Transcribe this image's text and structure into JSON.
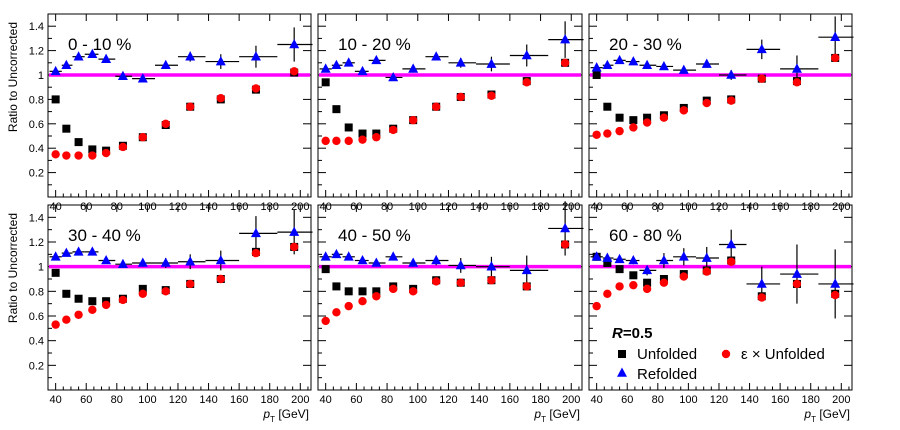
{
  "chart_data": {
    "type": "scatter",
    "y_axis_label": "Ratio to Uncorrected",
    "x_axis_label": {
      "main": "p",
      "subscript": "T",
      "unit": " [GeV]"
    },
    "xlim": [
      35,
      207
    ],
    "ylim": [
      0,
      1.5
    ],
    "x_ticks": [
      40,
      60,
      80,
      100,
      120,
      140,
      160,
      180,
      200
    ],
    "y_ticks": [
      0.2,
      0.4,
      0.6,
      0.8,
      1,
      1.2,
      1.4
    ],
    "reference_line": 1,
    "legend": {
      "title_R": "R",
      "title_rest": "=0.5",
      "unfolded": "Unfolded",
      "refolded": "Refolded",
      "eps_unfolded": "ε × Unfolded"
    },
    "colors": {
      "unfolded": "#000000",
      "refolded": "#0000ff",
      "eps_unfolded": "#ff0000",
      "reference": "#ff00ff"
    },
    "panels": [
      {
        "label": "0 - 10 %",
        "unfolded": [
          [
            40,
            0.8
          ],
          [
            47,
            0.56
          ],
          [
            55,
            0.45
          ],
          [
            64,
            0.39
          ],
          [
            73,
            0.38
          ],
          [
            84,
            0.42
          ],
          [
            97,
            0.49
          ],
          [
            112,
            0.59
          ],
          [
            128,
            0.74
          ],
          [
            148,
            0.8
          ],
          [
            171,
            0.88
          ],
          [
            196,
            1.02
          ]
        ],
        "eps_unfolded": [
          [
            40,
            0.35
          ],
          [
            47,
            0.34
          ],
          [
            55,
            0.34
          ],
          [
            64,
            0.34
          ],
          [
            73,
            0.36
          ],
          [
            84,
            0.41
          ],
          [
            97,
            0.49
          ],
          [
            112,
            0.6
          ],
          [
            128,
            0.74
          ],
          [
            148,
            0.81
          ],
          [
            171,
            0.89
          ],
          [
            196,
            1.03
          ]
        ],
        "refolded": [
          [
            40,
            1.03
          ],
          [
            47,
            1.08
          ],
          [
            55,
            1.15
          ],
          [
            64,
            1.17
          ],
          [
            73,
            1.13
          ],
          [
            84,
            0.99
          ],
          [
            97,
            0.97
          ],
          [
            112,
            1.08
          ],
          [
            128,
            1.15
          ],
          [
            148,
            1.11
          ],
          [
            171,
            1.15
          ],
          [
            196,
            1.25
          ]
        ],
        "refolded_err": [
          0.01,
          0.01,
          0.01,
          0.02,
          0.02,
          0.02,
          0.03,
          0.03,
          0.04,
          0.06,
          0.09,
          0.14
        ]
      },
      {
        "label": "10 - 20 %",
        "unfolded": [
          [
            40,
            0.94
          ],
          [
            47,
            0.72
          ],
          [
            55,
            0.57
          ],
          [
            64,
            0.52
          ],
          [
            73,
            0.52
          ],
          [
            84,
            0.56
          ],
          [
            97,
            0.63
          ],
          [
            112,
            0.74
          ],
          [
            128,
            0.82
          ],
          [
            148,
            0.84
          ],
          [
            171,
            0.95
          ],
          [
            196,
            1.1
          ]
        ],
        "eps_unfolded": [
          [
            40,
            0.46
          ],
          [
            47,
            0.46
          ],
          [
            55,
            0.46
          ],
          [
            64,
            0.47
          ],
          [
            73,
            0.49
          ],
          [
            84,
            0.55
          ],
          [
            97,
            0.63
          ],
          [
            112,
            0.74
          ],
          [
            128,
            0.82
          ],
          [
            148,
            0.83
          ],
          [
            171,
            0.94
          ],
          [
            196,
            1.1
          ]
        ],
        "refolded": [
          [
            40,
            1.05
          ],
          [
            47,
            1.08
          ],
          [
            55,
            1.1
          ],
          [
            64,
            1.03
          ],
          [
            73,
            1.12
          ],
          [
            84,
            0.98
          ],
          [
            97,
            1.05
          ],
          [
            112,
            1.15
          ],
          [
            128,
            1.1
          ],
          [
            148,
            1.09
          ],
          [
            171,
            1.16
          ],
          [
            196,
            1.29
          ]
        ],
        "refolded_err": [
          0.01,
          0.01,
          0.01,
          0.02,
          0.02,
          0.02,
          0.03,
          0.03,
          0.04,
          0.06,
          0.09,
          0.15
        ]
      },
      {
        "label": "20 - 30 %",
        "unfolded": [
          [
            40,
            1.0
          ],
          [
            47,
            0.74
          ],
          [
            55,
            0.65
          ],
          [
            64,
            0.63
          ],
          [
            73,
            0.65
          ],
          [
            84,
            0.67
          ],
          [
            97,
            0.73
          ],
          [
            112,
            0.79
          ],
          [
            128,
            0.8
          ],
          [
            148,
            0.97
          ],
          [
            171,
            0.95
          ],
          [
            196,
            1.14
          ]
        ],
        "eps_unfolded": [
          [
            40,
            0.51
          ],
          [
            47,
            0.52
          ],
          [
            55,
            0.54
          ],
          [
            64,
            0.57
          ],
          [
            73,
            0.61
          ],
          [
            84,
            0.65
          ],
          [
            97,
            0.71
          ],
          [
            112,
            0.77
          ],
          [
            128,
            0.79
          ],
          [
            148,
            0.97
          ],
          [
            171,
            0.94
          ],
          [
            196,
            1.14
          ]
        ],
        "refolded": [
          [
            40,
            1.06
          ],
          [
            47,
            1.08
          ],
          [
            55,
            1.12
          ],
          [
            64,
            1.11
          ],
          [
            73,
            1.08
          ],
          [
            84,
            1.07
          ],
          [
            97,
            1.04
          ],
          [
            112,
            1.09
          ],
          [
            128,
            1.0
          ],
          [
            148,
            1.21
          ],
          [
            171,
            1.05
          ],
          [
            196,
            1.31
          ]
        ],
        "refolded_err": [
          0.01,
          0.01,
          0.01,
          0.02,
          0.02,
          0.02,
          0.03,
          0.03,
          0.04,
          0.08,
          0.11,
          0.17
        ]
      },
      {
        "label": "30 - 40 %",
        "unfolded": [
          [
            40,
            0.95
          ],
          [
            47,
            0.78
          ],
          [
            55,
            0.74
          ],
          [
            64,
            0.72
          ],
          [
            73,
            0.72
          ],
          [
            84,
            0.74
          ],
          [
            97,
            0.82
          ],
          [
            112,
            0.81
          ],
          [
            128,
            0.86
          ],
          [
            148,
            0.9
          ],
          [
            171,
            1.12
          ],
          [
            196,
            1.16
          ]
        ],
        "eps_unfolded": [
          [
            40,
            0.53
          ],
          [
            47,
            0.57
          ],
          [
            55,
            0.61
          ],
          [
            64,
            0.65
          ],
          [
            73,
            0.69
          ],
          [
            84,
            0.73
          ],
          [
            97,
            0.78
          ],
          [
            112,
            0.8
          ],
          [
            128,
            0.86
          ],
          [
            148,
            0.9
          ],
          [
            171,
            1.11
          ],
          [
            196,
            1.16
          ]
        ],
        "refolded": [
          [
            40,
            1.08
          ],
          [
            47,
            1.11
          ],
          [
            55,
            1.12
          ],
          [
            64,
            1.12
          ],
          [
            73,
            1.05
          ],
          [
            84,
            1.02
          ],
          [
            97,
            1.03
          ],
          [
            112,
            1.03
          ],
          [
            128,
            1.04
          ],
          [
            148,
            1.05
          ],
          [
            171,
            1.27
          ],
          [
            196,
            1.28
          ]
        ],
        "refolded_err": [
          0.01,
          0.01,
          0.02,
          0.02,
          0.02,
          0.02,
          0.03,
          0.04,
          0.06,
          0.08,
          0.14,
          0.18
        ]
      },
      {
        "label": "40 - 50 %",
        "unfolded": [
          [
            40,
            0.98
          ],
          [
            47,
            0.84
          ],
          [
            55,
            0.8
          ],
          [
            64,
            0.8
          ],
          [
            73,
            0.8
          ],
          [
            84,
            0.84
          ],
          [
            97,
            0.82
          ],
          [
            112,
            0.89
          ],
          [
            128,
            0.87
          ],
          [
            148,
            0.89
          ],
          [
            171,
            0.84
          ],
          [
            196,
            1.18
          ]
        ],
        "eps_unfolded": [
          [
            40,
            0.56
          ],
          [
            47,
            0.63
          ],
          [
            55,
            0.68
          ],
          [
            64,
            0.72
          ],
          [
            73,
            0.76
          ],
          [
            84,
            0.82
          ],
          [
            97,
            0.8
          ],
          [
            112,
            0.88
          ],
          [
            128,
            0.87
          ],
          [
            148,
            0.89
          ],
          [
            171,
            0.84
          ],
          [
            196,
            1.18
          ]
        ],
        "refolded": [
          [
            40,
            1.08
          ],
          [
            47,
            1.1
          ],
          [
            55,
            1.08
          ],
          [
            64,
            1.05
          ],
          [
            73,
            1.03
          ],
          [
            84,
            1.08
          ],
          [
            97,
            1.03
          ],
          [
            112,
            1.05
          ],
          [
            128,
            1.01
          ],
          [
            148,
            1.0
          ],
          [
            171,
            0.97
          ],
          [
            196,
            1.31
          ]
        ],
        "refolded_err": [
          0.01,
          0.01,
          0.02,
          0.02,
          0.02,
          0.02,
          0.03,
          0.04,
          0.06,
          0.08,
          0.12,
          0.22
        ]
      },
      {
        "label": "60 - 80 %",
        "unfolded": [
          [
            40,
            1.08
          ],
          [
            47,
            1.03
          ],
          [
            55,
            0.98
          ],
          [
            64,
            0.93
          ],
          [
            73,
            0.87
          ],
          [
            84,
            0.9
          ],
          [
            97,
            0.94
          ],
          [
            112,
            0.97
          ],
          [
            128,
            1.05
          ],
          [
            148,
            0.76
          ],
          [
            171,
            0.86
          ],
          [
            196,
            0.78
          ]
        ],
        "eps_unfolded": [
          [
            40,
            0.68
          ],
          [
            47,
            0.78
          ],
          [
            55,
            0.84
          ],
          [
            64,
            0.85
          ],
          [
            73,
            0.82
          ],
          [
            84,
            0.87
          ],
          [
            97,
            0.92
          ],
          [
            112,
            0.96
          ],
          [
            128,
            1.04
          ],
          [
            148,
            0.75
          ],
          [
            171,
            0.86
          ],
          [
            196,
            0.77
          ]
        ],
        "refolded": [
          [
            40,
            1.08
          ],
          [
            47,
            1.07
          ],
          [
            55,
            1.06
          ],
          [
            64,
            1.05
          ],
          [
            73,
            0.97
          ],
          [
            84,
            1.05
          ],
          [
            97,
            1.08
          ],
          [
            112,
            1.07
          ],
          [
            128,
            1.18
          ],
          [
            148,
            0.86
          ],
          [
            171,
            0.94
          ],
          [
            196,
            0.86
          ]
        ],
        "refolded_err": [
          0.01,
          0.02,
          0.02,
          0.03,
          0.04,
          0.06,
          0.07,
          0.09,
          0.12,
          0.14,
          0.24,
          0.28
        ]
      }
    ]
  }
}
